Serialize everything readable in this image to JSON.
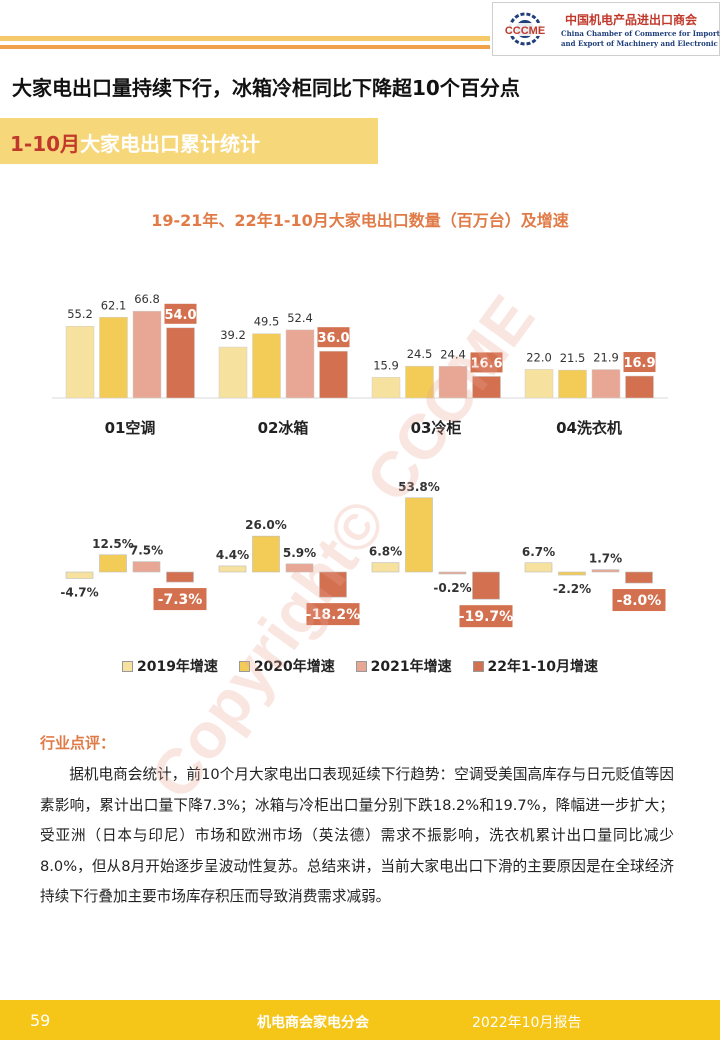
{
  "header": {
    "logo_mark_text": "CCCME",
    "logo_cn": "中国机电产品进出口商会",
    "logo_en_line1": "China Chamber of Commerce for Import",
    "logo_en_line2": "and Export of Machinery and Electronic Products"
  },
  "headline": "大家电出口量持续下行，冰箱冷柜同比下降超10个百分点",
  "section": {
    "highlight": "1-10月",
    "rest": "大家电出口累计统计"
  },
  "chart_title": "19-21年、22年1-10月大家电出口数量（百万台）及增速",
  "colors": {
    "s2019": "#f6e19e",
    "s2020": "#f2cc57",
    "s2021": "#e8a795",
    "s2022": "#d3704f",
    "accent": "#e07b47",
    "footer": "#f5c518"
  },
  "chart_data": {
    "type": "bar",
    "categories": [
      "01空调",
      "02冰箱",
      "03冷柜",
      "04洗衣机"
    ],
    "series": [
      {
        "name": "2019年",
        "values": [
          55.2,
          39.2,
          15.9,
          22.0
        ]
      },
      {
        "name": "2020年",
        "values": [
          62.1,
          49.5,
          24.5,
          21.5
        ]
      },
      {
        "name": "2021年",
        "values": [
          66.8,
          52.4,
          24.4,
          21.9
        ]
      },
      {
        "name": "22年1-10月",
        "values": [
          54.0,
          36.0,
          16.6,
          16.9
        ]
      }
    ],
    "value_labels": [
      [
        "55.2",
        "62.1",
        "66.8",
        "54.0"
      ],
      [
        "39.2",
        "49.5",
        "52.4",
        "36.0"
      ],
      [
        "15.9",
        "24.5",
        "24.4",
        "16.6"
      ],
      [
        "22.0",
        "21.5",
        "21.9",
        "16.9"
      ]
    ],
    "growth": {
      "series": [
        {
          "name": "2019年增速",
          "values": [
            -4.7,
            4.4,
            6.8,
            6.7
          ]
        },
        {
          "name": "2020年增速",
          "values": [
            12.5,
            26.0,
            53.8,
            -2.2
          ]
        },
        {
          "name": "2021年增速",
          "values": [
            7.5,
            5.9,
            -0.2,
            1.7
          ]
        },
        {
          "name": "22年1-10月增速",
          "values": [
            -7.3,
            -18.2,
            -19.7,
            -8.0
          ]
        }
      ],
      "labels": [
        [
          "-4.7%",
          "12.5%",
          "7.5%",
          "-7.3%"
        ],
        [
          "4.4%",
          "26.0%",
          "5.9%",
          "-18.2%"
        ],
        [
          "6.8%",
          "53.8%",
          "-0.2%",
          "-19.7%"
        ],
        [
          "6.7%",
          "-2.2%",
          "1.7%",
          "-8.0%"
        ]
      ]
    }
  },
  "legend": [
    "2019年增速",
    "2020年增速",
    "2021年增速",
    "22年1-10月增速"
  ],
  "comment": {
    "heading": "行业点评：",
    "body": "据机电商会统计，前10个月大家电出口表现延续下行趋势：空调受美国高库存与日元贬值等因素影响，累计出口量下降7.3%；冰箱与冷柜出口量分别下跌18.2%和19.7%，降幅进一步扩大；受亚洲（日本与印尼）市场和欧洲市场（英法德）需求不振影响，洗衣机累计出口量同比减少8.0%，但从8月开始逐步呈波动性复苏。总结来讲，当前大家电出口下滑的主要原因是在全球经济持续下行叠加主要市场库存积压而导致消费需求减弱。"
  },
  "watermark": "Copyright© CCCME",
  "footer": {
    "page": "59",
    "org": "机电商会家电分会",
    "report": "2022年10月报告"
  }
}
